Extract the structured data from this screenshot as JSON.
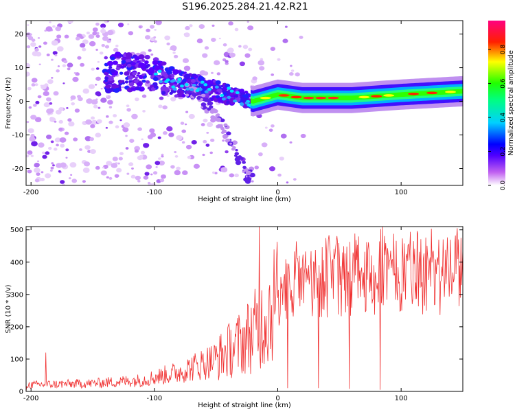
{
  "chart_data": [
    {
      "type": "heatmap",
      "title": "S196.2025.284.21.42.R21",
      "xlabel": "Height of straight line (km)",
      "ylabel": "Frequency (Hz)",
      "xlim": [
        -204,
        150
      ],
      "ylim": [
        -25,
        24
      ],
      "xticks": [
        -200,
        -100,
        0,
        100
      ],
      "yticks": [
        -20,
        -10,
        0,
        10,
        20
      ],
      "colorbar": {
        "label": "Normalized spectral amplitude",
        "range": [
          0.0,
          0.97
        ],
        "ticks": [
          0.0,
          0.2,
          0.4,
          0.6,
          0.8
        ],
        "tick_labels": [
          "0.0",
          "0.2",
          "0.4",
          "0.6",
          "0.8"
        ],
        "colors": [
          "#ffffff",
          "#a020f0",
          "#0000ff",
          "#00e0ff",
          "#00ff00",
          "#ffff00",
          "#ff0000",
          "#ff0080"
        ]
      },
      "ridge": {
        "description_points": [
          {
            "x": -130,
            "y": 9
          },
          {
            "x": -100,
            "y": 8
          },
          {
            "x": -80,
            "y": 5
          },
          {
            "x": -60,
            "y": 4
          },
          {
            "x": -40,
            "y": 2
          },
          {
            "x": -20,
            "y": 0
          },
          {
            "x": 0,
            "y": 2
          },
          {
            "x": 20,
            "y": 1
          },
          {
            "x": 60,
            "y": 1
          },
          {
            "x": 100,
            "y": 2
          },
          {
            "x": 150,
            "y": 3
          }
        ],
        "branch_points": [
          {
            "x": -70,
            "y": 3
          },
          {
            "x": -55,
            "y": -2
          },
          {
            "x": -40,
            "y": -10
          },
          {
            "x": -25,
            "y": -22
          }
        ]
      }
    },
    {
      "type": "line",
      "xlabel": "Height of straight line (km)",
      "ylabel": "SNR (10 * v/v)",
      "xlim": [
        -204,
        150
      ],
      "ylim": [
        0,
        510
      ],
      "xticks": [
        -200,
        -100,
        0,
        100
      ],
      "yticks": [
        0,
        100,
        200,
        300,
        400,
        500
      ],
      "series_color": "#f03030",
      "envelope": [
        {
          "x": -204,
          "y": 20
        },
        {
          "x": -150,
          "y": 25
        },
        {
          "x": -110,
          "y": 35
        },
        {
          "x": -80,
          "y": 60
        },
        {
          "x": -50,
          "y": 100
        },
        {
          "x": -30,
          "y": 150
        },
        {
          "x": -15,
          "y": 200
        },
        {
          "x": -5,
          "y": 260
        },
        {
          "x": 0,
          "y": 300
        },
        {
          "x": 20,
          "y": 320
        },
        {
          "x": 40,
          "y": 340
        },
        {
          "x": 60,
          "y": 350
        },
        {
          "x": 100,
          "y": 360
        },
        {
          "x": 150,
          "y": 360
        }
      ],
      "spikes": [
        {
          "x": -188,
          "y": 120
        },
        {
          "x": -15,
          "y": 510
        },
        {
          "x": 85,
          "y": 510
        }
      ],
      "dips": [
        {
          "x": -205,
          "y": 0
        },
        {
          "x": 8,
          "y": 10
        },
        {
          "x": 33,
          "y": 10
        },
        {
          "x": 58,
          "y": 8
        },
        {
          "x": 83,
          "y": 5
        },
        {
          "x": 148,
          "y": 290
        }
      ]
    }
  ]
}
